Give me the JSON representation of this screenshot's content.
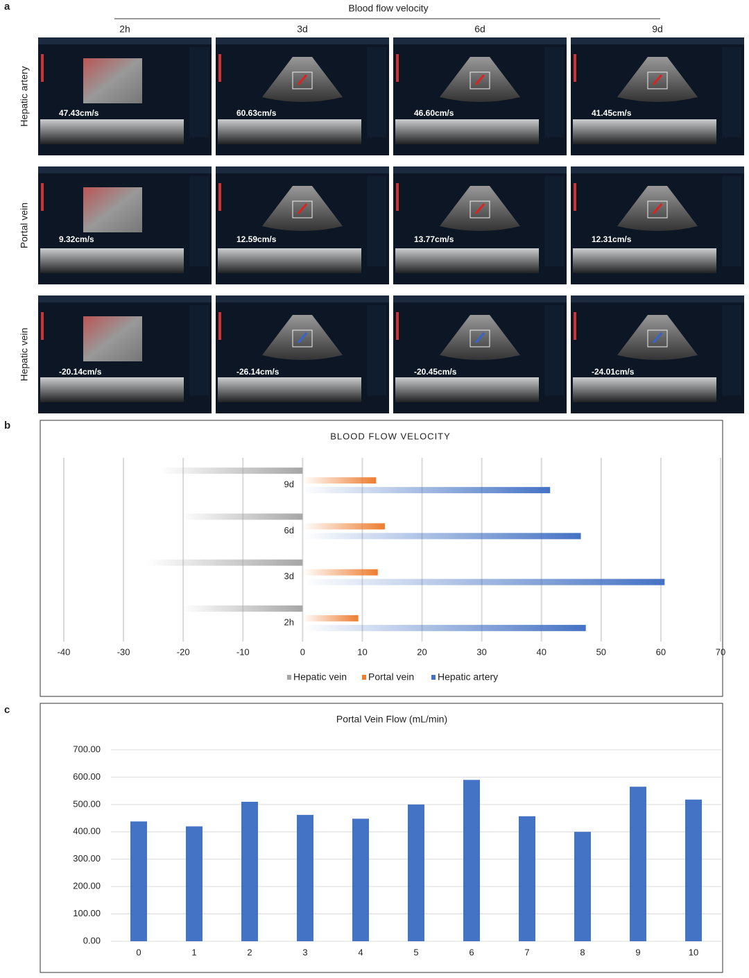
{
  "panel_labels": [
    "a",
    "b",
    "c"
  ],
  "figure": {
    "title": "Blood flow velocity",
    "columns": [
      "2h",
      "3d",
      "6d",
      "9d"
    ],
    "rows": [
      "Hepatic artery",
      "Portal vein",
      "Hepatic vein"
    ],
    "velocities": [
      [
        "47.43cm/s",
        "60.63cm/s",
        "46.60cm/s",
        "41.45cm/s"
      ],
      [
        "9.32cm/s",
        "12.59cm/s",
        "13.77cm/s",
        "12.31cm/s"
      ],
      [
        "-20.14cm/s",
        "-26.14cm/s",
        "-20.45cm/s",
        "-24.01cm/s"
      ]
    ]
  },
  "chart_data": [
    {
      "type": "hbar",
      "title": "BLOOD FLOW VELOCITY",
      "categories": [
        "2h",
        "3d",
        "6d",
        "9d"
      ],
      "series": [
        {
          "name": "Hepatic vein",
          "color": "#a6a6a6",
          "values": [
            -20.14,
            -26.14,
            -20.45,
            -24.01
          ]
        },
        {
          "name": "Portal vein",
          "color": "#ed7d31",
          "values": [
            9.32,
            12.59,
            13.77,
            12.31
          ]
        },
        {
          "name": "Hepatic artery",
          "color": "#4472c4",
          "values": [
            47.43,
            60.63,
            46.6,
            41.45
          ]
        }
      ],
      "xlim": [
        -40,
        70
      ],
      "xticks": [
        -40,
        -30,
        -20,
        -10,
        0,
        10,
        20,
        30,
        40,
        50,
        60,
        70
      ],
      "grid": true,
      "legend": "bottom"
    },
    {
      "type": "bar",
      "title": "Portal Vein Flow (mL/min)",
      "categories": [
        "0",
        "1",
        "2",
        "3",
        "4",
        "5",
        "6",
        "7",
        "8",
        "9",
        "10"
      ],
      "values": [
        438,
        420,
        510,
        462,
        448,
        500,
        590,
        457,
        400,
        565,
        518
      ],
      "color": "#4472c4",
      "ylim": [
        0,
        700
      ],
      "yticks": [
        {
          "value": 0,
          "label": "0.00"
        },
        {
          "value": 100,
          "label": "100.00"
        },
        {
          "value": 200,
          "label": "200.00"
        },
        {
          "value": 300,
          "label": "300.00"
        },
        {
          "value": 400,
          "label": "400.00"
        },
        {
          "value": 500,
          "label": "500.00"
        },
        {
          "value": 600,
          "label": "600.00"
        },
        {
          "value": 700,
          "label": "700.00"
        }
      ],
      "grid": true
    }
  ]
}
